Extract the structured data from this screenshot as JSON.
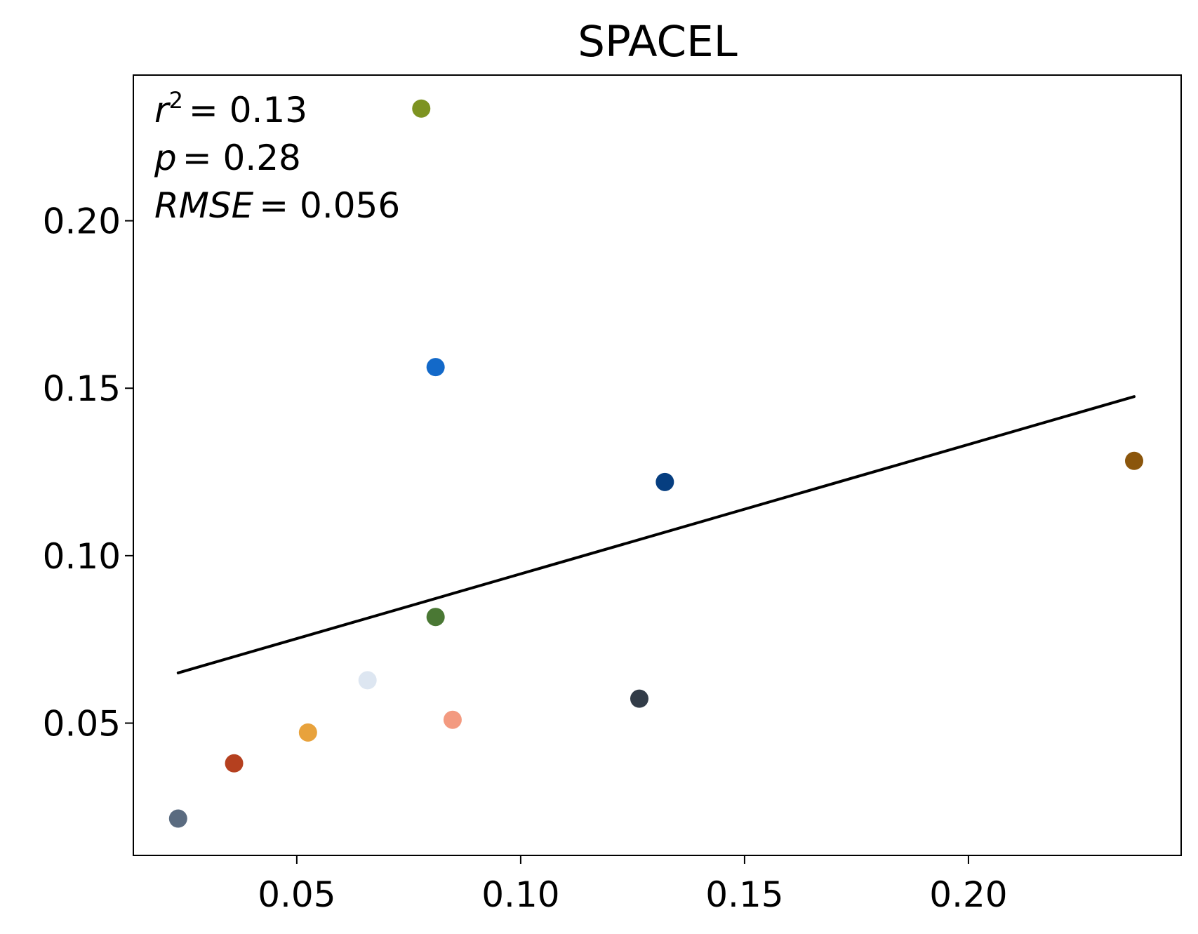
{
  "chart_data": {
    "type": "scatter",
    "title": "SPACEL",
    "xlabel": "",
    "ylabel": "",
    "xlim": [
      0.0135,
      0.2475
    ],
    "ylim": [
      0.0105,
      0.2435
    ],
    "x_ticks": [
      0.05,
      0.1,
      0.15,
      0.2
    ],
    "x_tick_labels": [
      "0.05",
      "0.10",
      "0.15",
      "0.20"
    ],
    "y_ticks": [
      0.05,
      0.1,
      0.15,
      0.2
    ],
    "y_tick_labels": [
      "0.05",
      "0.10",
      "0.15",
      "0.20"
    ],
    "grid": false,
    "points": [
      {
        "x": 0.0235,
        "y": 0.0215,
        "color": "#5a6b80"
      },
      {
        "x": 0.036,
        "y": 0.038,
        "color": "#b5401f"
      },
      {
        "x": 0.0525,
        "y": 0.0472,
        "color": "#e8a23c"
      },
      {
        "x": 0.0658,
        "y": 0.0628,
        "color": "#dde6f1"
      },
      {
        "x": 0.0778,
        "y": 0.2335,
        "color": "#7d9321"
      },
      {
        "x": 0.081,
        "y": 0.1563,
        "color": "#1369c9"
      },
      {
        "x": 0.081,
        "y": 0.0817,
        "color": "#4a7834"
      },
      {
        "x": 0.0848,
        "y": 0.051,
        "color": "#f39a80"
      },
      {
        "x": 0.1265,
        "y": 0.0573,
        "color": "#323c48"
      },
      {
        "x": 0.1322,
        "y": 0.122,
        "color": "#063e80"
      },
      {
        "x": 0.237,
        "y": 0.1283,
        "color": "#8b560c"
      }
    ],
    "fit_line": {
      "x": [
        0.0235,
        0.237
      ],
      "y": [
        0.065,
        0.1475
      ],
      "color": "#000000"
    },
    "annotations": {
      "r2_symbol": "r",
      "r2_exponent": "2",
      "r2_value": "= 0.13",
      "p_symbol": "p",
      "p_value": "= 0.28",
      "rmse_symbol": "RMSE",
      "rmse_value": "= 0.056"
    }
  }
}
